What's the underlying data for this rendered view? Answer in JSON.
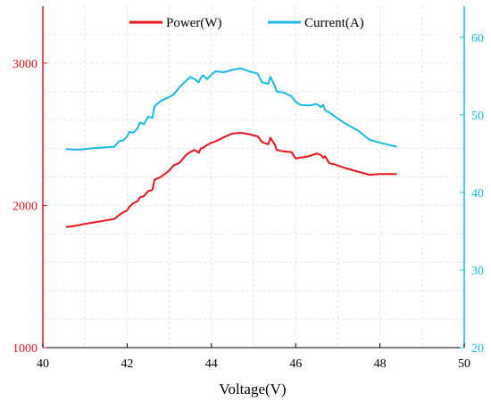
{
  "chart_data": {
    "type": "line",
    "xlabel": "Voltage(V)",
    "xlim": [
      40,
      50
    ],
    "x_ticks": [
      "40",
      "42",
      "44",
      "46",
      "48",
      "50"
    ],
    "left_axis": {
      "label": "",
      "ylim": [
        1000,
        3400
      ],
      "ticks": [
        "1000",
        "2000",
        "3000"
      ],
      "color": "#e8131b"
    },
    "right_axis": {
      "label": "",
      "ylim": [
        20,
        64
      ],
      "ticks": [
        "20",
        "30",
        "40",
        "50",
        "60"
      ],
      "color": "#1ab8e8"
    },
    "grid": true,
    "legend_position": "top",
    "series": [
      {
        "name": "Power(W)",
        "axis": "left",
        "color": "#e8131b",
        "x": [
          40.55,
          40.8,
          41.0,
          41.2,
          41.5,
          41.7,
          41.8,
          41.9,
          42.0,
          42.05,
          42.15,
          42.25,
          42.3,
          42.4,
          42.5,
          42.6,
          42.65,
          42.8,
          43.0,
          43.1,
          43.25,
          43.4,
          43.5,
          43.6,
          43.7,
          43.75,
          43.8,
          43.9,
          44.0,
          44.1,
          44.3,
          44.5,
          44.7,
          44.9,
          45.1,
          45.2,
          45.35,
          45.4,
          45.5,
          45.55,
          45.7,
          45.9,
          46.0,
          46.1,
          46.3,
          46.5,
          46.6,
          46.65,
          46.7,
          46.8,
          46.9,
          47.2,
          47.5,
          47.75,
          48.0,
          48.4
        ],
        "y": [
          1848,
          1858,
          1870,
          1880,
          1895,
          1905,
          1930,
          1950,
          1965,
          1990,
          2015,
          2030,
          2055,
          2065,
          2100,
          2110,
          2180,
          2200,
          2245,
          2280,
          2300,
          2355,
          2375,
          2390,
          2370,
          2400,
          2405,
          2425,
          2440,
          2450,
          2480,
          2505,
          2510,
          2500,
          2485,
          2445,
          2430,
          2475,
          2430,
          2390,
          2380,
          2375,
          2330,
          2335,
          2345,
          2365,
          2355,
          2335,
          2345,
          2295,
          2290,
          2260,
          2235,
          2215,
          2220,
          2220
        ]
      },
      {
        "name": "Current(A)",
        "axis": "right",
        "color": "#1ab8e8",
        "x": [
          40.55,
          40.8,
          41.0,
          41.2,
          41.5,
          41.7,
          41.8,
          41.9,
          42.0,
          42.05,
          42.15,
          42.25,
          42.3,
          42.4,
          42.5,
          42.6,
          42.65,
          42.8,
          43.0,
          43.1,
          43.25,
          43.4,
          43.5,
          43.6,
          43.7,
          43.75,
          43.8,
          43.9,
          44.0,
          44.1,
          44.3,
          44.5,
          44.7,
          44.9,
          45.1,
          45.2,
          45.35,
          45.4,
          45.5,
          45.55,
          45.7,
          45.9,
          46.0,
          46.1,
          46.3,
          46.5,
          46.6,
          46.65,
          46.7,
          46.8,
          46.9,
          47.2,
          47.5,
          47.75,
          48.0,
          48.4
        ],
        "y": [
          45.6,
          45.5,
          45.6,
          45.7,
          45.8,
          45.9,
          46.6,
          46.7,
          47.2,
          47.8,
          47.7,
          48.3,
          49.0,
          48.8,
          49.8,
          49.6,
          51.1,
          51.8,
          52.3,
          52.6,
          53.6,
          54.4,
          54.9,
          54.6,
          54.2,
          54.8,
          55.1,
          54.6,
          55.2,
          55.6,
          55.5,
          55.8,
          56.0,
          55.6,
          55.3,
          54.2,
          54.0,
          54.9,
          53.8,
          53.0,
          52.9,
          52.4,
          51.7,
          51.3,
          51.2,
          51.4,
          51.0,
          51.3,
          50.6,
          50.3,
          49.9,
          48.8,
          47.9,
          46.8,
          46.4,
          45.9
        ]
      }
    ]
  }
}
